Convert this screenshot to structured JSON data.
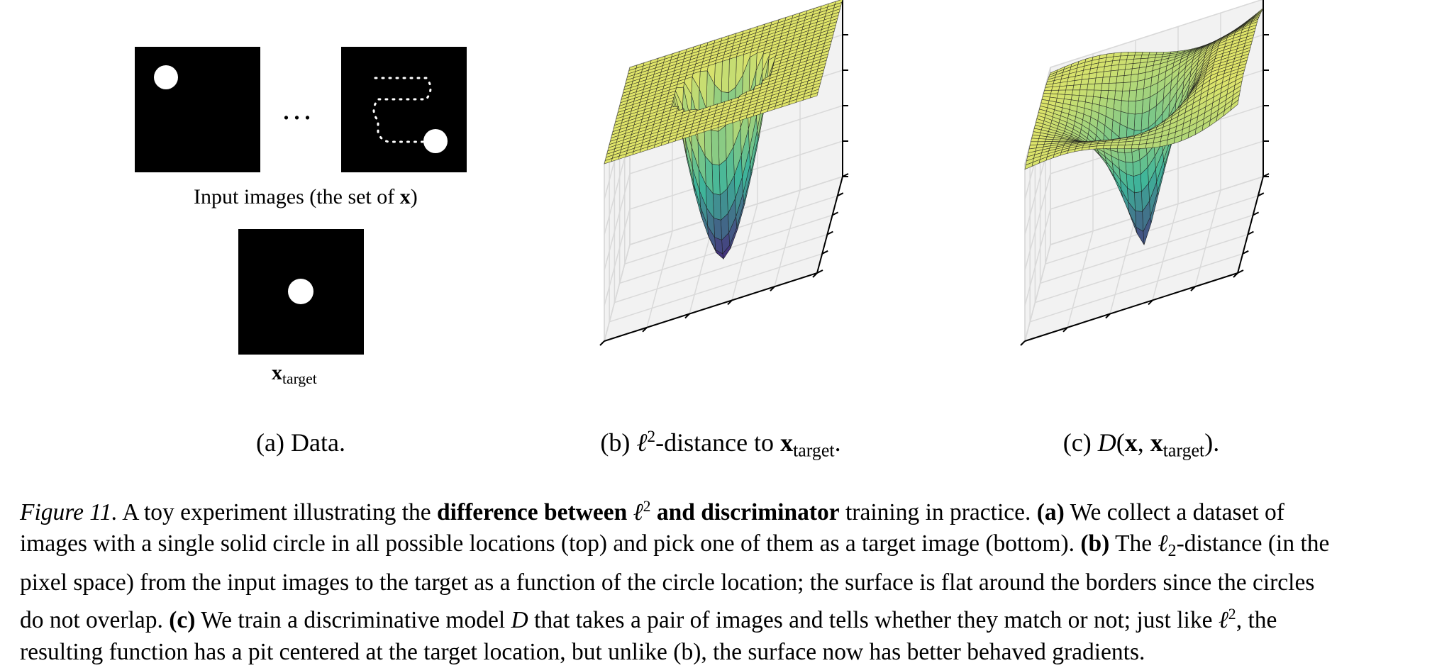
{
  "panel_a": {
    "input_images_label": "Input images (the set of ",
    "input_images_var": "x",
    "input_images_close": ")",
    "ellipsis": "...",
    "target_var": "x",
    "target_sub": "target"
  },
  "subcaptions": {
    "a": "(a) Data.",
    "b_prefix": "(b) ",
    "b_ell": "ℓ",
    "b_sup": "2",
    "b_mid": "-distance to ",
    "b_var": "x",
    "b_sub": "target",
    "b_end": ".",
    "c_prefix": "(c) ",
    "c_D": "D",
    "c_open": "(",
    "c_x": "x",
    "c_comma": ", ",
    "c_x2": "x",
    "c_sub": "target",
    "c_close": ").",
    "c_end": ""
  },
  "caption": {
    "fig_label": "Figure 11.",
    "l1_a": " A toy experiment illustrating the ",
    "l1_bold1": "difference between ",
    "ell": "ℓ",
    "two": "2",
    "l1_bold2": " and discriminator",
    "l1_b": " training in practice. ",
    "a_tag": "(a)",
    "l1_c": " We collect a dataset of",
    "l2_a": "images with a single solid circle in all possible locations (top) and pick one of them as a target image (bottom). ",
    "b_tag": "(b)",
    "l2_b": " The ",
    "l2_c": "-distance (in the",
    "l3": "pixel space) from the input images to the target as a function of the circle location; the surface is flat around the borders since the circles",
    "l4_a": "do not overlap. ",
    "c_tag": "(c)",
    "l4_b": " We train a discriminative model ",
    "D": "D",
    "l4_c": " that takes a pair of images and tells whether they match or not; just like ",
    "l4_d": ", the",
    "l5": "resulting function has a pit centered at the target location, but unlike (b), the surface now has better behaved gradients."
  },
  "colors": {
    "surface_top": "#e0e56a",
    "surface_mid": "#3fb59a",
    "surface_bottom": "#45297a",
    "mesh": "#1a1a1a",
    "pane_grid": "#d9d9d9",
    "pane_fill": "#f2f2f2"
  },
  "plots": {
    "b": {
      "surface": "l2-distance",
      "pit": "sharp"
    },
    "c": {
      "surface": "discriminator",
      "pit": "smooth"
    }
  }
}
